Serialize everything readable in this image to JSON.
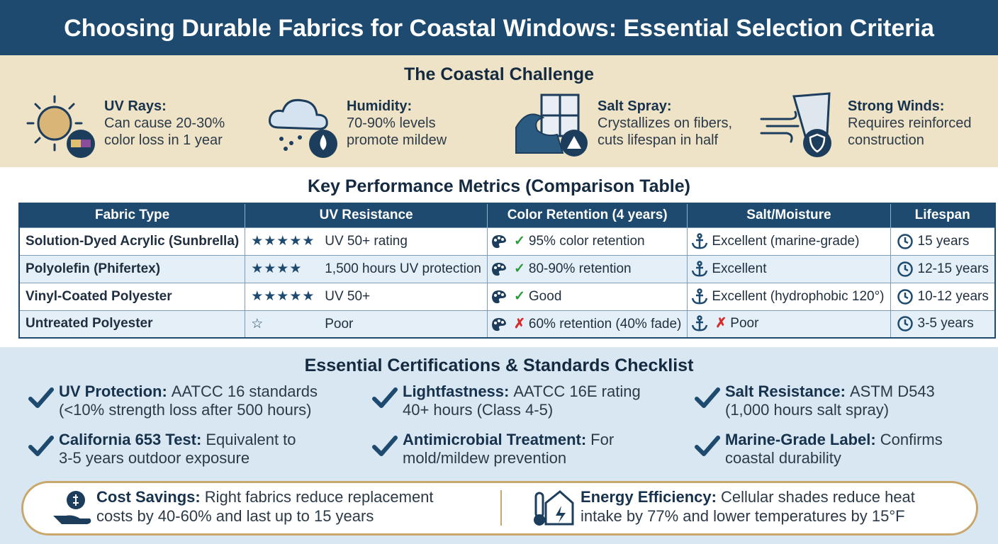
{
  "header": {
    "title": "Choosing Durable Fabrics for Coastal Windows: Essential Selection Criteria"
  },
  "challenge": {
    "title": "The Coastal Challenge",
    "items": [
      {
        "label": "UV Rays:",
        "lines": [
          "Can cause 20-30%",
          "color loss in 1 year"
        ]
      },
      {
        "label": "Humidity:",
        "lines": [
          "70-90% levels",
          "promote mildew"
        ]
      },
      {
        "label": "Salt Spray:",
        "lines": [
          "Crystallizes on fibers,",
          "cuts lifespan in half"
        ]
      },
      {
        "label": "Strong Winds:",
        "lines": [
          "Requires reinforced",
          "construction"
        ]
      }
    ]
  },
  "metrics": {
    "title": "Key Performance Metrics (Comparison Table)",
    "columns": [
      "Fabric Type",
      "UV Resistance",
      "Color Retention (4 years)",
      "Salt/Moisture",
      "Lifespan"
    ],
    "rows": [
      {
        "fabric": "Solution-Dyed Acrylic (Sunbrella)",
        "stars": "★★★★★",
        "uv": "UV 50+ rating",
        "color_mark": "✓",
        "color": "95% color retention",
        "salt": "Excellent (marine-grade)",
        "lifespan": "15 years"
      },
      {
        "fabric": "Polyolefin (Phifertex)",
        "stars": "★★★★",
        "uv": "1,500 hours UV protection",
        "color_mark": "✓",
        "color": "80-90% retention",
        "salt": "Excellent",
        "lifespan": "12-15 years"
      },
      {
        "fabric": "Vinyl-Coated Polyester",
        "stars": "★★★★★",
        "uv": "UV 50+",
        "color_mark": "✓",
        "color": "Good",
        "salt": "Excellent (hydrophobic 120°)",
        "lifespan": "10-12 years"
      },
      {
        "fabric": "Untreated Polyester",
        "stars": "☆",
        "uv": "Poor",
        "color_mark": "✗",
        "color": "60% retention (40% fade)",
        "salt_mark": "✗",
        "salt": "Poor",
        "lifespan": "3-5 years"
      }
    ]
  },
  "certifications": {
    "title": "Essential Certifications & Standards Checklist",
    "items": [
      {
        "label": "UV Protection:",
        "lines": [
          "AATCC 16 standards",
          "(<10% strength loss after 500 hours)"
        ]
      },
      {
        "label": "Lightfastness:",
        "lines": [
          "AATCC 16E rating",
          "40+ hours (Class 4-5)"
        ]
      },
      {
        "label": "Salt Resistance:",
        "lines": [
          "ASTM D543",
          "(1,000 hours salt spray)"
        ]
      },
      {
        "label": "California 653 Test:",
        "lines": [
          "Equivalent to",
          "3-5 years outdoor exposure"
        ]
      },
      {
        "label": "Antimicrobial Treatment:",
        "lines": [
          "For",
          "mold/mildew prevention"
        ]
      },
      {
        "label": "Marine-Grade Label:",
        "lines": [
          "Confirms",
          "coastal durability"
        ]
      }
    ]
  },
  "footer": {
    "items": [
      {
        "label": "Cost Savings:",
        "lines": [
          "Right fabrics reduce replacement",
          "costs by 40-60% and last up to 15 years"
        ]
      },
      {
        "label": "Energy Efficiency:",
        "lines": [
          "Cellular shades reduce heat",
          "intake by 77% and lower temperatures by 15°F"
        ]
      }
    ]
  }
}
